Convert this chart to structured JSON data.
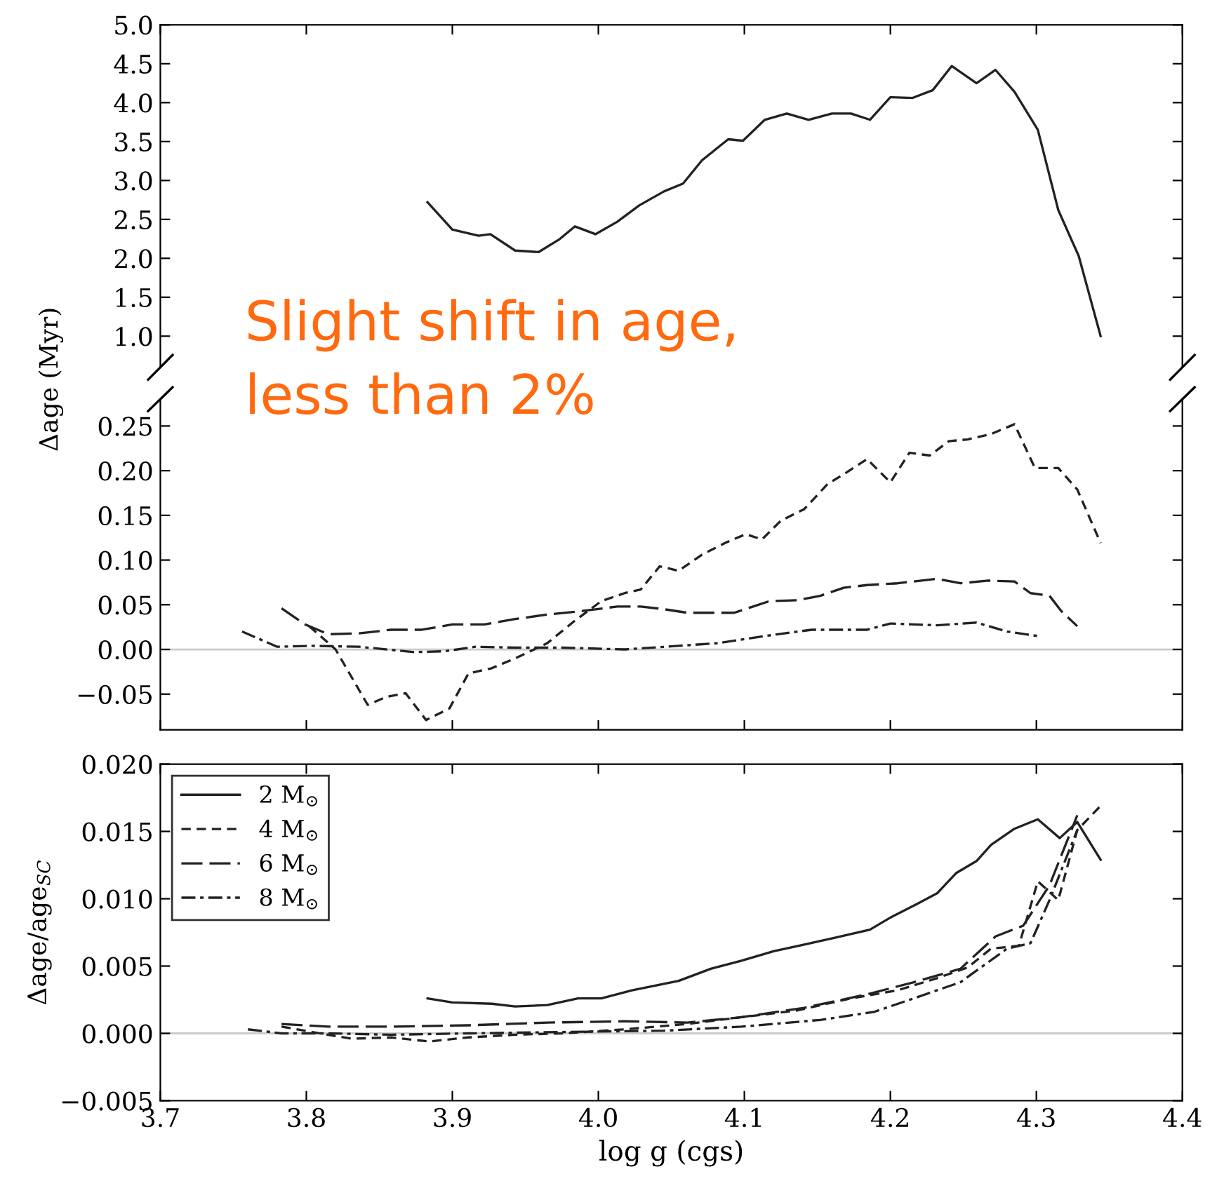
{
  "chart_data": [
    {
      "type": "line",
      "xlim": [
        3.7,
        4.4
      ],
      "ylim": [
        0.6,
        5.0
      ],
      "yticks": [
        {
          "value": 1,
          "label": "1.0"
        },
        1.5,
        {
          "value": 2,
          "label": "2.0"
        },
        2.5,
        {
          "value": 3,
          "label": "3.0"
        },
        3.5,
        {
          "value": 4,
          "label": "4.0"
        },
        4.5,
        {
          "value": 5,
          "label": "5.0"
        }
      ],
      "tick_labels": "y",
      "grid": false,
      "legend": false,
      "annotations": [
        "Slight shift in age,\nless than 2%"
      ],
      "series": [
        {
          "color": "#222222",
          "line_style": "solid",
          "x": [
            3.883,
            3.9,
            3.918,
            3.926,
            3.943,
            3.959,
            3.973,
            3.984,
            3.998,
            4.013,
            4.028,
            4.045,
            4.058,
            4.071,
            4.089,
            4.099,
            4.114,
            4.129,
            4.144,
            4.16,
            4.173,
            4.186,
            4.2,
            4.215,
            4.229,
            4.242,
            4.259,
            4.272,
            4.285,
            4.301,
            4.315,
            4.329,
            4.344
          ],
          "values": [
            2.72,
            2.37,
            2.29,
            2.31,
            2.1,
            2.08,
            2.24,
            2.41,
            2.31,
            2.47,
            2.68,
            2.86,
            2.96,
            3.26,
            3.53,
            3.51,
            3.78,
            3.86,
            3.78,
            3.86,
            3.86,
            3.78,
            4.07,
            4.06,
            4.16,
            4.47,
            4.25,
            4.42,
            4.14,
            3.65,
            2.62,
            2.03,
            1.0
          ]
        }
      ]
    },
    {
      "type": "line",
      "xlim": [
        3.7,
        4.4
      ],
      "ylim": [
        -0.09,
        0.28
      ],
      "yticks": [
        {
          "value": -0.05,
          "label": "−0.05"
        },
        {
          "value": 0.0,
          "label": "0.00"
        },
        {
          "value": 0.05,
          "label": "0.05"
        },
        {
          "value": 0.1,
          "label": "0.10"
        },
        {
          "value": 0.15,
          "label": "0.15"
        },
        {
          "value": 0.2,
          "label": "0.20"
        },
        {
          "value": 0.25,
          "label": "0.25"
        }
      ],
      "ylabel": "Δage (Myr)",
      "tick_labels": "y",
      "grid": false,
      "legend": false,
      "ref_lines": [
        {
          "axis": "y",
          "value": 0.0,
          "color": "#cccccc"
        }
      ],
      "series": [
        {
          "color": "#222222",
          "line_style": "dashed",
          "x": [
            3.802,
            3.82,
            3.842,
            3.855,
            3.868,
            3.882,
            3.898,
            3.911,
            3.927,
            3.943,
            3.965,
            3.983,
            4.002,
            4.018,
            4.029,
            4.042,
            4.055,
            4.071,
            4.088,
            4.101,
            4.112,
            4.125,
            4.141,
            4.157,
            4.17,
            4.184,
            4.2,
            4.213,
            4.227,
            4.24,
            4.253,
            4.269,
            4.285,
            4.299,
            4.315,
            4.328,
            4.344
          ],
          "values": [
            0.026,
            0.0,
            -0.062,
            -0.053,
            -0.049,
            -0.079,
            -0.066,
            -0.027,
            -0.021,
            -0.01,
            0.007,
            0.031,
            0.054,
            0.063,
            0.067,
            0.093,
            0.088,
            0.106,
            0.12,
            0.129,
            0.123,
            0.144,
            0.157,
            0.185,
            0.198,
            0.213,
            0.187,
            0.22,
            0.217,
            0.233,
            0.235,
            0.241,
            0.252,
            0.203,
            0.203,
            0.179,
            0.119
          ]
        },
        {
          "color": "#222222",
          "line_style": "longdash",
          "x": [
            3.783,
            3.799,
            3.815,
            3.836,
            3.858,
            3.879,
            3.9,
            3.922,
            3.943,
            3.965,
            3.989,
            4.013,
            4.029,
            4.045,
            4.061,
            4.077,
            4.093,
            4.106,
            4.117,
            4.136,
            4.152,
            4.168,
            4.184,
            4.205,
            4.232,
            4.248,
            4.267,
            4.285,
            4.296,
            4.309,
            4.317,
            4.328
          ],
          "values": [
            0.046,
            0.028,
            0.017,
            0.018,
            0.022,
            0.022,
            0.028,
            0.028,
            0.034,
            0.039,
            0.043,
            0.048,
            0.048,
            0.045,
            0.041,
            0.041,
            0.041,
            0.048,
            0.054,
            0.055,
            0.06,
            0.069,
            0.072,
            0.074,
            0.079,
            0.074,
            0.077,
            0.076,
            0.063,
            0.06,
            0.043,
            0.026
          ]
        },
        {
          "color": "#222222",
          "line_style": "dashdot",
          "x": [
            3.756,
            3.78,
            3.804,
            3.836,
            3.874,
            3.895,
            3.916,
            3.943,
            3.975,
            4.018,
            4.055,
            4.082,
            4.114,
            4.146,
            4.184,
            4.2,
            4.232,
            4.259,
            4.28,
            4.301
          ],
          "values": [
            0.02,
            0.003,
            0.004,
            0.003,
            -0.003,
            -0.002,
            0.003,
            0.002,
            0.002,
            0.0,
            0.004,
            0.007,
            0.015,
            0.022,
            0.022,
            0.029,
            0.027,
            0.03,
            0.02,
            0.015
          ]
        }
      ]
    },
    {
      "type": "line",
      "xlim": [
        3.7,
        4.4
      ],
      "xticks": [
        3.7,
        3.8,
        3.9,
        {
          "value": 4,
          "label": "4.0"
        },
        4.1,
        4.2,
        4.3,
        4.4
      ],
      "ylim": [
        -0.005,
        0.02
      ],
      "yticks": [
        {
          "value": -0.005,
          "label": "−0.005"
        },
        {
          "value": 0.0,
          "label": "0.000"
        },
        {
          "value": 0.005,
          "label": "0.005"
        },
        {
          "value": 0.01,
          "label": "0.010"
        },
        {
          "value": 0.015,
          "label": "0.015"
        },
        {
          "value": 0.02,
          "label": "0.020"
        }
      ],
      "xlabel": "log g (cgs)",
      "ylabel": "Δage/age$_{SC}$",
      "grid": false,
      "legend": "top left",
      "ref_lines": [
        {
          "axis": "y",
          "value": 0.0,
          "color": "#cccccc"
        }
      ],
      "series": [
        {
          "name": "2 M$_{⊙}$",
          "color": "#222222",
          "line_style": "solid",
          "x": [
            3.883,
            3.9,
            3.927,
            3.943,
            3.965,
            3.986,
            4.002,
            4.023,
            4.055,
            4.077,
            4.098,
            4.12,
            4.141,
            4.162,
            4.186,
            4.2,
            4.218,
            4.232,
            4.245,
            4.259,
            4.269,
            4.285,
            4.301,
            4.316,
            4.328,
            4.344
          ],
          "values": [
            0.0026,
            0.0023,
            0.0022,
            0.002,
            0.0021,
            0.0026,
            0.0026,
            0.0032,
            0.0039,
            0.0048,
            0.0054,
            0.0061,
            0.0066,
            0.0071,
            0.0077,
            0.0086,
            0.0096,
            0.0104,
            0.0119,
            0.0128,
            0.014,
            0.0152,
            0.0159,
            0.0145,
            0.0157,
            0.0129
          ]
        },
        {
          "name": "4 M$_{⊙}$",
          "color": "#222222",
          "line_style": "dashed",
          "x": [
            3.783,
            3.804,
            3.831,
            3.858,
            3.884,
            3.911,
            3.943,
            3.975,
            4.018,
            4.061,
            4.098,
            4.136,
            4.173,
            4.205,
            4.232,
            4.253,
            4.269,
            4.288,
            4.301,
            4.315,
            4.328,
            4.344
          ],
          "values": [
            0.0005,
            0.0001,
            -0.0004,
            -0.0003,
            -0.0006,
            -0.0003,
            -0.0001,
            0.0,
            0.0003,
            0.0007,
            0.0012,
            0.0017,
            0.0026,
            0.0032,
            0.0041,
            0.0049,
            0.0063,
            0.0065,
            0.0113,
            0.0099,
            0.0151,
            0.0169
          ]
        },
        {
          "name": "6 M$_{⊙}$",
          "color": "#222222",
          "line_style": "longdash",
          "x": [
            3.783,
            3.815,
            3.858,
            3.911,
            3.965,
            4.018,
            4.061,
            4.098,
            4.141,
            4.184,
            4.216,
            4.248,
            4.272,
            4.291,
            4.309,
            4.328
          ],
          "values": [
            0.0007,
            0.0005,
            0.0005,
            0.0006,
            0.0008,
            0.0009,
            0.0008,
            0.0012,
            0.0019,
            0.0029,
            0.0038,
            0.0048,
            0.0072,
            0.008,
            0.011,
            0.0162
          ]
        },
        {
          "name": "8 M$_{⊙}$",
          "color": "#222222",
          "line_style": "dashdot",
          "x": [
            3.76,
            3.783,
            3.815,
            3.858,
            3.911,
            3.975,
            4.045,
            4.098,
            4.152,
            4.189,
            4.216,
            4.248,
            4.28,
            4.296,
            4.309,
            4.328
          ],
          "values": [
            0.0003,
            0.0,
            0.0,
            -0.0001,
            0.0,
            0.0001,
            0.0002,
            0.0005,
            0.001,
            0.0016,
            0.0026,
            0.0038,
            0.0063,
            0.0067,
            0.0099,
            0.0151
          ]
        }
      ]
    }
  ]
}
